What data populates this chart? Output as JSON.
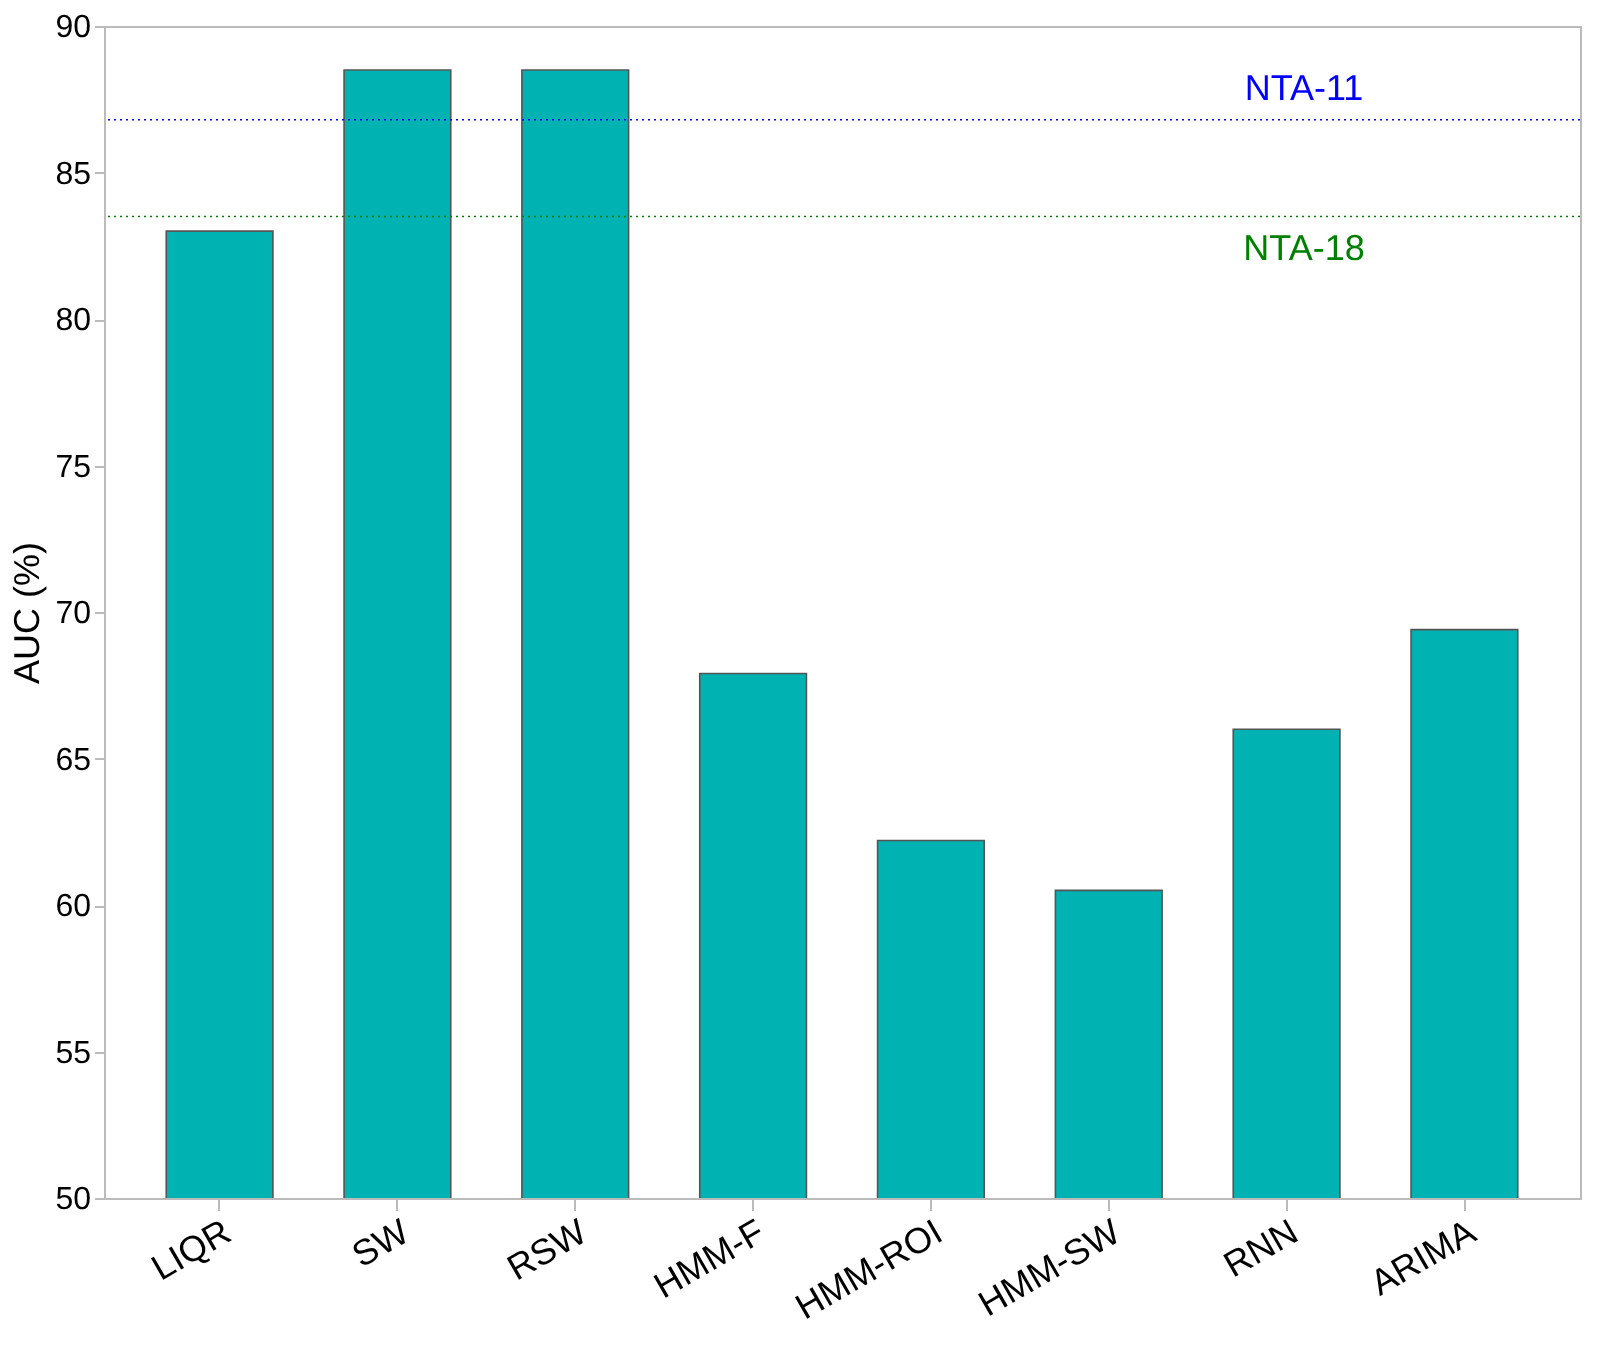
{
  "chart_data": {
    "type": "bar",
    "ylabel": "AUC (%)",
    "categories": [
      "LIQR",
      "SW",
      "RSW",
      "HMM-F",
      "HMM-ROI",
      "HMM-SW",
      "RNN",
      "ARIMA"
    ],
    "values": [
      83.0,
      88.5,
      88.5,
      67.9,
      62.2,
      60.5,
      66.0,
      69.4
    ],
    "color": "#00b2b2",
    "ylim": [
      50,
      90
    ],
    "yticks": [
      50,
      55,
      60,
      65,
      70,
      75,
      80,
      85,
      90
    ],
    "grid": false,
    "ref_lines": [
      {
        "axis": "y",
        "value": 86.8,
        "label": "NTA-11",
        "color": "#0000ff",
        "line_style": "dotted"
      },
      {
        "axis": "y",
        "value": 83.5,
        "label": "NTA-18",
        "color": "#008000",
        "line_style": "dotted"
      }
    ]
  }
}
